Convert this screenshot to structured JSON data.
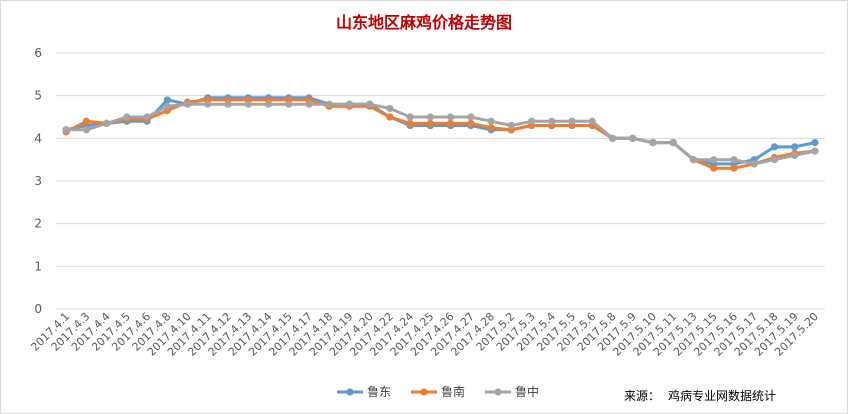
{
  "chart_data": {
    "type": "line",
    "title": "山东地区麻鸡价格走势图",
    "xlabel": "",
    "ylabel": "",
    "ylim": [
      0,
      6
    ],
    "yticks": [
      0,
      1,
      2,
      3,
      4,
      5,
      6
    ],
    "grid": true,
    "legend_position": "bottom",
    "categories": [
      "2017.4.1",
      "2017.4.3",
      "2017.4.4",
      "2017.4.5",
      "2017.4.6",
      "2017.4.8",
      "2017.4.10",
      "2017.4.11",
      "2017.4.12",
      "2017.4.13",
      "2017.4.14",
      "2017.4.15",
      "2017.4.17",
      "2017.4.18",
      "2017.4.19",
      "2017.4.20",
      "2017.4.22",
      "2017.4.24",
      "2017.4.25",
      "2017.4.26",
      "2017.4.27",
      "2017.4.28",
      "2017.5.2",
      "2017.5.3",
      "2017.5.4",
      "2017.5.5",
      "2017.5.6",
      "2017.5.8",
      "2017.5.9",
      "2017.5.10",
      "2017.5.11",
      "2017.5.13",
      "2017.5.15",
      "2017.5.16",
      "2017.5.17",
      "2017.5.18",
      "2017.5.19",
      "2017.5.20"
    ],
    "series": [
      {
        "name": "鲁东",
        "color": "#5b9bd5",
        "values": [
          4.2,
          4.3,
          4.35,
          4.4,
          4.4,
          4.9,
          4.8,
          4.95,
          4.95,
          4.95,
          4.95,
          4.95,
          4.95,
          4.8,
          4.8,
          4.8,
          4.5,
          4.3,
          4.3,
          4.3,
          4.3,
          4.2,
          4.2,
          4.3,
          4.3,
          4.3,
          4.3,
          4.0,
          4.0,
          3.9,
          3.9,
          3.5,
          3.4,
          3.4,
          3.5,
          3.8,
          3.8,
          3.9
        ]
      },
      {
        "name": "鲁南",
        "color": "#ed7d31",
        "values": [
          4.15,
          4.4,
          4.35,
          4.45,
          4.45,
          4.65,
          4.85,
          4.9,
          4.9,
          4.9,
          4.9,
          4.9,
          4.9,
          4.75,
          4.75,
          4.75,
          4.5,
          4.35,
          4.35,
          4.35,
          4.35,
          4.25,
          4.2,
          4.3,
          4.3,
          4.3,
          4.3,
          4.0,
          4.0,
          3.9,
          3.9,
          3.5,
          3.3,
          3.3,
          3.4,
          3.55,
          3.65,
          3.7
        ]
      },
      {
        "name": "鲁中",
        "color": "#a5a5a5",
        "values": [
          4.2,
          4.2,
          4.35,
          4.5,
          4.5,
          4.75,
          4.8,
          4.8,
          4.8,
          4.8,
          4.8,
          4.8,
          4.8,
          4.8,
          4.8,
          4.8,
          4.7,
          4.5,
          4.5,
          4.5,
          4.5,
          4.4,
          4.3,
          4.4,
          4.4,
          4.4,
          4.4,
          4.0,
          4.0,
          3.9,
          3.9,
          3.5,
          3.5,
          3.5,
          3.4,
          3.5,
          3.6,
          3.7
        ]
      }
    ]
  },
  "footer": {
    "source_label": "来源：",
    "source_text": "鸡病专业网数据统计"
  }
}
